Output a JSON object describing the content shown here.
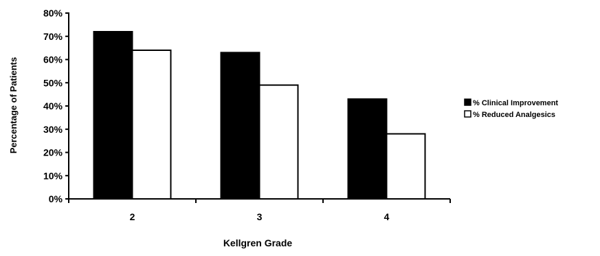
{
  "chart_data": {
    "type": "bar",
    "title": "",
    "xlabel": "Kellgren Grade",
    "ylabel": "Percentage of Patients",
    "categories": [
      "2",
      "3",
      "4"
    ],
    "series": [
      {
        "name": "% Clinical Improvement",
        "values": [
          72,
          63,
          43
        ],
        "color": "#000000"
      },
      {
        "name": "% Reduced Analgesics",
        "values": [
          64,
          49,
          28
        ],
        "color": "#ffffff"
      }
    ],
    "y_ticks": [
      "0%",
      "10%",
      "20%",
      "30%",
      "40%",
      "50%",
      "60%",
      "70%",
      "80%"
    ],
    "ylim": [
      0,
      80
    ],
    "grid": false,
    "legend_position": "right"
  }
}
